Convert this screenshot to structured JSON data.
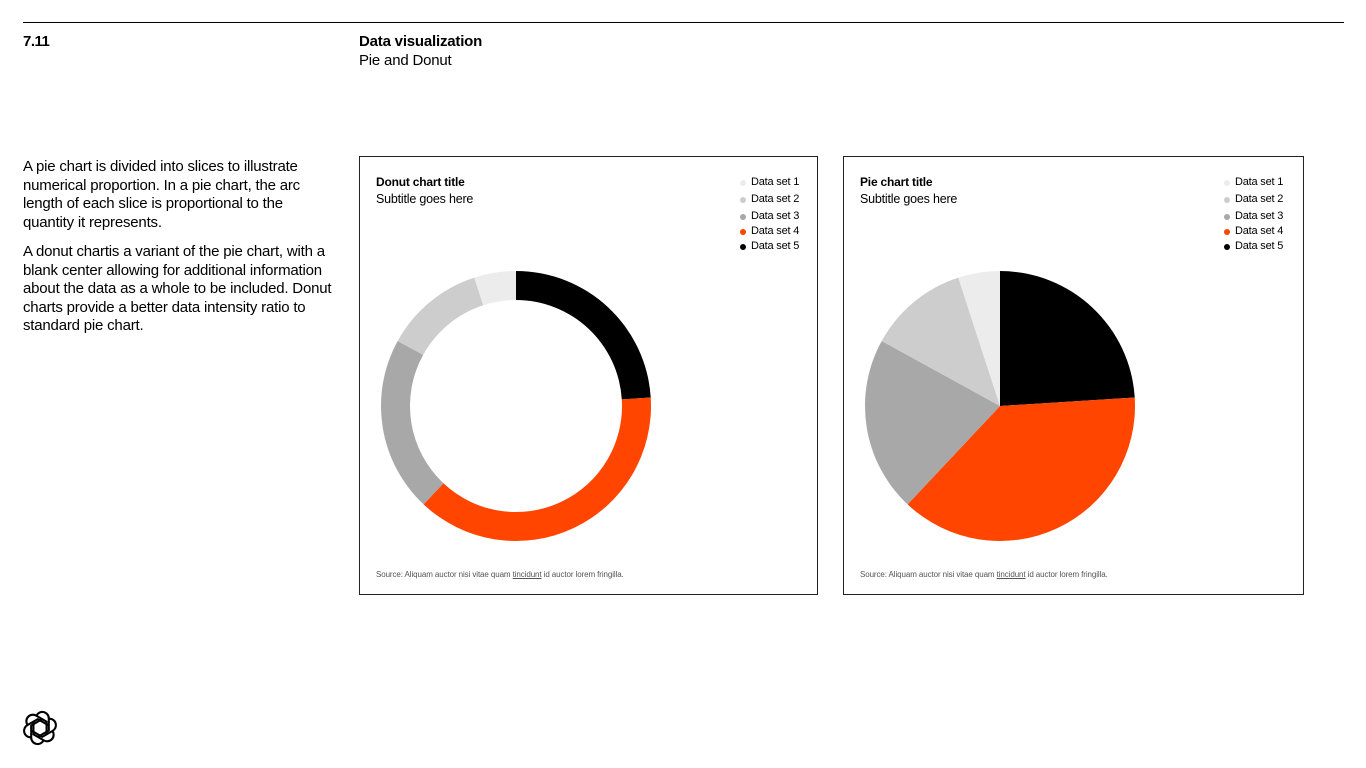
{
  "header": {
    "section_number": "7.11",
    "title": "Data visualization",
    "subtitle": "Pie and Donut"
  },
  "intro": {
    "paragraph_1": "A pie chart is divided into slices to illustrate numerical proportion. In a pie chart, the arc length of each slice is proportional to the quantity it represents.",
    "paragraph_2": "A donut chartis a variant of the pie chart, with a blank center allowing for additional information about the data as a whole to be included. Donut charts provide a better data intensity ratio to standard pie chart."
  },
  "colors": {
    "set1": "#ececec",
    "set2": "#cdcdcd",
    "set3": "#a8a8a8",
    "set4": "#ff4500",
    "set5": "#000000"
  },
  "logo": {
    "icon": "openai-logo-icon"
  },
  "chart_data": [
    {
      "type": "donut",
      "title": "Donut chart title",
      "subtitle": "Subtitle goes here",
      "legend_position": "top-right",
      "categories": [
        "Data set 1",
        "Data set 2",
        "Data set 3",
        "Data set 4",
        "Data set 5"
      ],
      "values": [
        5,
        12,
        21,
        38,
        24
      ],
      "source_prefix": "Source: Aliquam auctor nisi vitae quam ",
      "source_link": "tincidunt",
      "source_suffix": " id auctor lorem fringilla."
    },
    {
      "type": "pie",
      "title": "Pie chart title",
      "subtitle": "Subtitle goes here",
      "legend_position": "top-right",
      "categories": [
        "Data set 1",
        "Data set 2",
        "Data set 3",
        "Data set 4",
        "Data set 5"
      ],
      "values": [
        5,
        12,
        21,
        38,
        24
      ],
      "source_prefix": "Source: Aliquam auctor nisi vitae quam ",
      "source_link": "tincidunt",
      "source_suffix": " id auctor lorem fringilla."
    }
  ]
}
